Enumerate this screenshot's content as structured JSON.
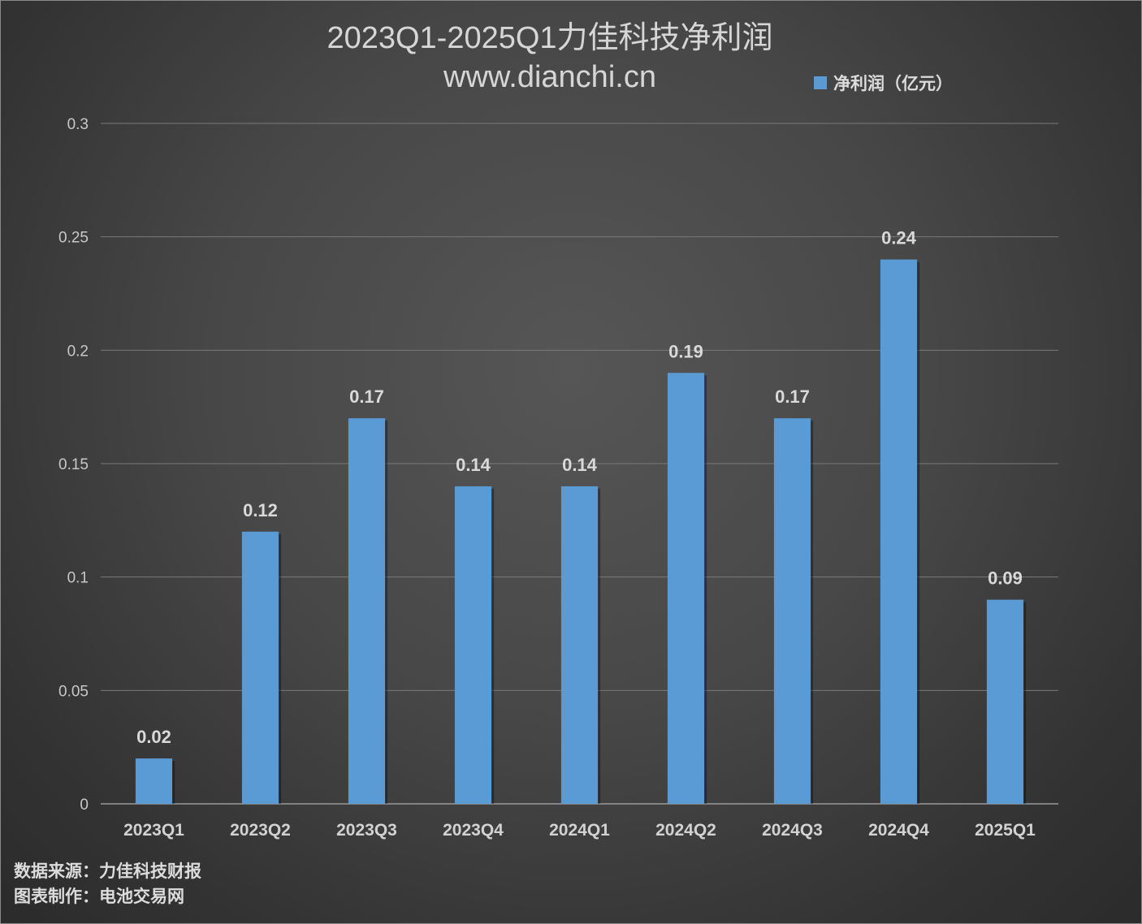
{
  "chart_data": {
    "type": "bar",
    "title": "2023Q1-2025Q1力佳科技净利润",
    "subtitle": "www.dianchi.cn",
    "categories": [
      "2023Q1",
      "2023Q2",
      "2023Q3",
      "2023Q4",
      "2024Q1",
      "2024Q2",
      "2024Q3",
      "2024Q4",
      "2025Q1"
    ],
    "series": [
      {
        "name": "净利润（亿元）",
        "values": [
          0.02,
          0.12,
          0.17,
          0.14,
          0.14,
          0.19,
          0.17,
          0.24,
          0.09
        ],
        "data_labels": [
          "0.02",
          "0.12",
          "0.17",
          "0.14",
          "0.14",
          "0.19",
          "0.17",
          "0.24",
          "0.09"
        ]
      }
    ],
    "yticks": [
      "0",
      "0.05",
      "0.1",
      "0.15",
      "0.2",
      "0.25",
      "0.3"
    ],
    "ylim": [
      0,
      0.3
    ],
    "grid": true,
    "legend_position": "top-right",
    "bar_color": "#5b9bd5",
    "gridline_color": "#7a7a7a"
  },
  "footer": {
    "source": "数据来源：力佳科技财报",
    "maker": "图表制作：电池交易网"
  }
}
